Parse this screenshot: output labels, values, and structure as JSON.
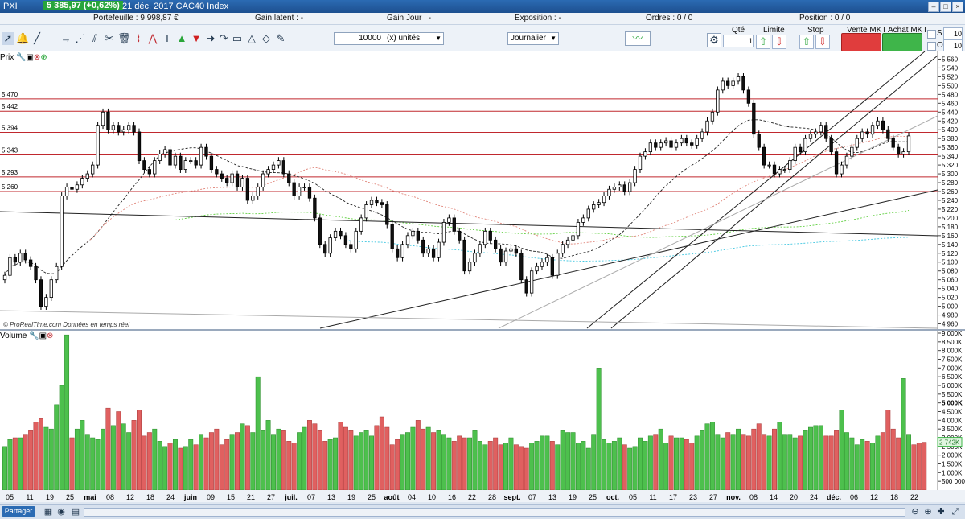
{
  "window": {
    "symbol": "PXI",
    "last": "5 385,97 (+0,62%)",
    "description": "21 déc. 2017  CAC40 Index"
  },
  "info": {
    "portefeuille": "Portefeuille :   9 998,87 €",
    "gain_latent": "Gain latent : -",
    "gain_jour": "Gain Jour : -",
    "exposition": "Exposition : -",
    "ordres": "Ordres : 0 / 0",
    "position": "Position : 0 / 0"
  },
  "toolbar": {
    "quantity": "10000",
    "unit_select": "(x) unités",
    "period_select": "Journalier"
  },
  "order_panel": {
    "qte_label": "Qté",
    "qte_value": "1",
    "limite_label": "Limite",
    "stop_label": "Stop",
    "sell_label": "Vente MKT",
    "buy_label": "Achat MKT",
    "s_label": "S",
    "o_label": "O",
    "s_value": "10",
    "o_value": "10"
  },
  "panels": {
    "price_title": "Prix",
    "volume_title": "Volume",
    "source_note": "© ProRealTime.com  Données en temps réel"
  },
  "status": {
    "share": "Partager"
  },
  "colors": {
    "up": "#ffffff",
    "down": "#111111",
    "vol_up": "#4dc04d",
    "vol_down": "#e06060",
    "hline": "#c0282e",
    "ma20": "#222222",
    "ma50": "#e0857a",
    "ma100": "#5fcf3f",
    "ma200": "#3fc6e0"
  },
  "chart_data": [
    {
      "type": "candlestick",
      "title": "CAC40 Index",
      "ylim": [
        4950,
        5570
      ],
      "y_ticks": [
        "5 560",
        "5 540",
        "5 520",
        "5 500",
        "5 480",
        "5 460",
        "5 440",
        "5 420",
        "5 400",
        "5 380",
        "5 360",
        "5 340",
        "5 320",
        "5 300",
        "5 280",
        "5 260",
        "5 240",
        "5 220",
        "5 200",
        "5 180",
        "5 160",
        "5 140",
        "5 120",
        "5 100",
        "5 080",
        "5 060",
        "5 040",
        "5 020",
        "5 000",
        "4 980",
        "4 960"
      ],
      "x_tick_labels": [
        "05",
        "11",
        "19",
        "25",
        "mai",
        "08",
        "12",
        "18",
        "24",
        "juin",
        "09",
        "15",
        "21",
        "27",
        "juil.",
        "07",
        "13",
        "19",
        "25",
        "août",
        "04",
        "10",
        "16",
        "22",
        "28",
        "sept.",
        "07",
        "13",
        "19",
        "25",
        "oct.",
        "05",
        "11",
        "17",
        "23",
        "27",
        "nov.",
        "08",
        "14",
        "20",
        "24",
        "déc.",
        "06",
        "12",
        "18",
        "22"
      ],
      "horizontal_levels": [
        {
          "label": "5 470",
          "value": 5470
        },
        {
          "label": "5 442",
          "value": 5442
        },
        {
          "label": "5 394",
          "value": 5394
        },
        {
          "label": "5 343",
          "value": 5343
        },
        {
          "label": "5 293",
          "value": 5293
        },
        {
          "label": "5 260",
          "value": 5260
        }
      ],
      "closes": [
        5070,
        5110,
        5100,
        5120,
        5105,
        5090,
        5060,
        5000,
        5020,
        5060,
        5090,
        5250,
        5270,
        5265,
        5275,
        5290,
        5300,
        5320,
        5410,
        5440,
        5400,
        5410,
        5395,
        5400,
        5410,
        5395,
        5330,
        5310,
        5300,
        5330,
        5345,
        5355,
        5320,
        5340,
        5310,
        5330,
        5330,
        5320,
        5360,
        5340,
        5310,
        5300,
        5290,
        5280,
        5300,
        5270,
        5290,
        5240,
        5250,
        5270,
        5300,
        5310,
        5320,
        5330,
        5300,
        5280,
        5250,
        5270,
        5270,
        5245,
        5200,
        5140,
        5120,
        5155,
        5170,
        5160,
        5140,
        5130,
        5170,
        5200,
        5230,
        5240,
        5235,
        5230,
        5185,
        5130,
        5110,
        5140,
        5160,
        5170,
        5150,
        5120,
        5130,
        5110,
        5145,
        5190,
        5200,
        5170,
        5150,
        5080,
        5100,
        5120,
        5140,
        5170,
        5150,
        5130,
        5100,
        5125,
        5130,
        5120,
        5060,
        5030,
        5080,
        5090,
        5100,
        5110,
        5070,
        5120,
        5140,
        5150,
        5160,
        5190,
        5200,
        5220,
        5230,
        5235,
        5250,
        5265,
        5270,
        5275,
        5260,
        5280,
        5310,
        5340,
        5350,
        5370,
        5360,
        5370,
        5375,
        5360,
        5370,
        5380,
        5370,
        5365,
        5380,
        5395,
        5420,
        5440,
        5490,
        5510,
        5500,
        5510,
        5520,
        5490,
        5460,
        5390,
        5360,
        5320,
        5320,
        5300,
        5310,
        5310,
        5330,
        5360,
        5350,
        5380,
        5390,
        5395,
        5410,
        5380,
        5350,
        5300,
        5320,
        5340,
        5360,
        5380,
        5395,
        5390,
        5410,
        5420,
        5400,
        5380,
        5360,
        5345,
        5350,
        5386
      ],
      "volume_ylim": [
        0,
        9000000
      ],
      "volume_ticks": [
        "9 000K",
        "8 500K",
        "8 000K",
        "7 500K",
        "7 000K",
        "6 500K",
        "6 000K",
        "5 500K",
        "5 000K",
        "4 500K",
        "4 000K",
        "3 500K",
        "3 000K",
        "2 500K",
        "2 000K",
        "1 500K",
        "1 000K",
        "500 000"
      ],
      "volume_last": "2 742K",
      "volumes_k": [
        2500,
        2900,
        3000,
        3000,
        3200,
        3400,
        3900,
        4100,
        3600,
        3500,
        4900,
        6000,
        8900,
        3000,
        3500,
        4000,
        3200,
        3000,
        2900,
        3500,
        4700,
        3700,
        4500,
        3800,
        3300,
        4000,
        4600,
        3100,
        3300,
        3500,
        2800,
        2500,
        2700,
        2900,
        2400,
        2500,
        2900,
        2600,
        3200,
        3000,
        3300,
        3500,
        2600,
        2900,
        3200,
        3300,
        3800,
        3700,
        3300,
        6500,
        3400,
        4000,
        3200,
        3500,
        3400,
        2800,
        2700,
        3300,
        3600,
        4000,
        3800,
        3400,
        2800,
        2900,
        3000,
        3900,
        3600,
        3400,
        3100,
        3300,
        3400,
        3100,
        3700,
        4200,
        3600,
        2600,
        2900,
        3200,
        3300,
        3600,
        4000,
        3500,
        3600,
        3300,
        3400,
        3200,
        3000,
        2800,
        3100,
        3000,
        3000,
        3400,
        2800,
        2600,
        2800,
        3000,
        2600,
        2700,
        3000,
        2600,
        2500,
        2400,
        2700,
        2800,
        3100,
        3100,
        2800,
        2600,
        3400,
        3300,
        3300,
        2700,
        2800,
        2400,
        3200,
        7000,
        2900,
        2700,
        2800,
        3000,
        2600,
        2400,
        2500,
        3000,
        2800,
        3100,
        3200,
        3500,
        2700,
        3100,
        3000,
        3000,
        2900,
        2700,
        3100,
        3400,
        3800,
        3900,
        3200,
        3000,
        3300,
        3200,
        3500,
        3200,
        3100,
        3500,
        3800,
        3200,
        3100,
        3500,
        3900,
        3200,
        3200,
        3000,
        3100,
        3400,
        3600,
        3700,
        3700,
        3100,
        3100,
        3400,
        4600,
        3300,
        3000,
        2600,
        2900,
        2800,
        2700,
        3100,
        3300,
        4600,
        3500,
        3000,
        6400,
        3200,
        2600,
        2700,
        2742
      ]
    }
  ]
}
